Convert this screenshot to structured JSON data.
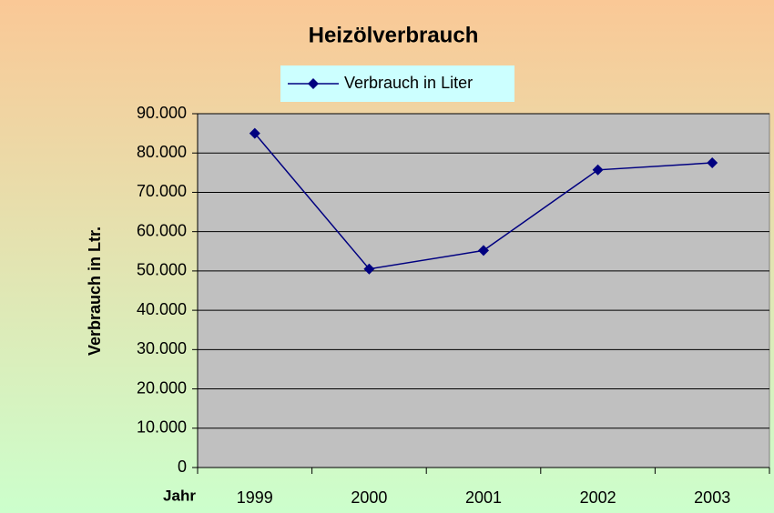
{
  "chart_data": {
    "type": "line",
    "title": "Heizölverbrauch",
    "x_label": "Jahr",
    "y_label": "Verbrauch in Ltr.",
    "categories": [
      "1999",
      "2000",
      "2001",
      "2002",
      "2003"
    ],
    "series": [
      {
        "name": "Verbrauch in Liter",
        "color": "#000080",
        "values": [
          85000,
          50500,
          55200,
          75700,
          77500
        ]
      }
    ],
    "ylim": [
      0,
      90000
    ],
    "yticks": [
      0,
      {
        "value": 10000,
        "label": "10.000"
      },
      {
        "value": 20000,
        "label": "20.000"
      },
      {
        "value": 30000,
        "label": "30.000"
      },
      {
        "value": 40000,
        "label": "40.000"
      },
      {
        "value": 50000,
        "label": "50.000"
      },
      {
        "value": 60000,
        "label": "60.000"
      },
      {
        "value": 70000,
        "label": "70.000"
      },
      {
        "value": 80000,
        "label": "80.000"
      },
      {
        "value": 90000,
        "label": "90.000"
      }
    ],
    "grid": true,
    "legend": "top"
  }
}
